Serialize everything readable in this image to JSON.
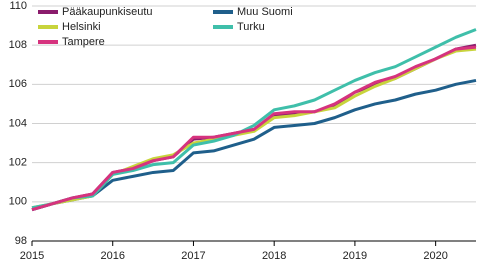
{
  "chart_data": {
    "type": "line",
    "x": [
      2015,
      2015.25,
      2015.5,
      2015.75,
      2016,
      2016.25,
      2016.5,
      2016.75,
      2017,
      2017.25,
      2017.5,
      2017.75,
      2018,
      2018.25,
      2018.5,
      2018.75,
      2019,
      2019.25,
      2019.5,
      2019.75,
      2020,
      2020.25,
      2020.5
    ],
    "xlim": [
      2015,
      2020.5
    ],
    "xticks": [
      2015,
      2016,
      2017,
      2018,
      2019,
      2020
    ],
    "ylim": [
      98,
      110
    ],
    "yticks": [
      98,
      100,
      102,
      104,
      106,
      108,
      110
    ],
    "grid": true,
    "series": [
      {
        "name": "Pääkaupunkiseutu",
        "color": "#8a1c6c",
        "values": [
          99.6,
          99.9,
          100.2,
          100.4,
          101.5,
          101.7,
          102.1,
          102.3,
          103.2,
          103.3,
          103.5,
          103.7,
          104.4,
          104.5,
          104.6,
          104.9,
          105.6,
          106.0,
          106.3,
          106.8,
          107.3,
          107.8,
          108.0
        ]
      },
      {
        "name": "Muu Suomi",
        "color": "#1f5f8b",
        "values": [
          99.6,
          99.9,
          100.1,
          100.3,
          101.1,
          101.3,
          101.5,
          101.6,
          102.5,
          102.6,
          102.9,
          103.2,
          103.8,
          103.9,
          104.0,
          104.3,
          104.7,
          105.0,
          105.2,
          105.5,
          105.7,
          106.0,
          106.2
        ]
      },
      {
        "name": "Helsinki",
        "color": "#c8d43c",
        "values": [
          99.7,
          99.9,
          100.1,
          100.3,
          101.4,
          101.8,
          102.2,
          102.4,
          103.0,
          103.2,
          103.4,
          103.6,
          104.3,
          104.4,
          104.6,
          104.8,
          105.4,
          105.9,
          106.3,
          106.8,
          107.3,
          107.7,
          107.8
        ]
      },
      {
        "name": "Turku",
        "color": "#3fbfaa",
        "values": [
          99.7,
          99.9,
          100.2,
          100.3,
          101.4,
          101.6,
          101.9,
          102.0,
          102.9,
          103.1,
          103.4,
          103.9,
          104.7,
          104.9,
          105.2,
          105.7,
          106.2,
          106.6,
          106.9,
          107.4,
          107.9,
          108.4,
          108.8
        ]
      },
      {
        "name": "Tampere",
        "color": "#d6337e",
        "values": [
          99.6,
          99.9,
          100.2,
          100.4,
          101.5,
          101.7,
          102.1,
          102.3,
          103.3,
          103.3,
          103.5,
          103.7,
          104.5,
          104.6,
          104.6,
          105.0,
          105.6,
          106.1,
          106.4,
          106.9,
          107.3,
          107.8,
          107.9
        ]
      }
    ]
  }
}
